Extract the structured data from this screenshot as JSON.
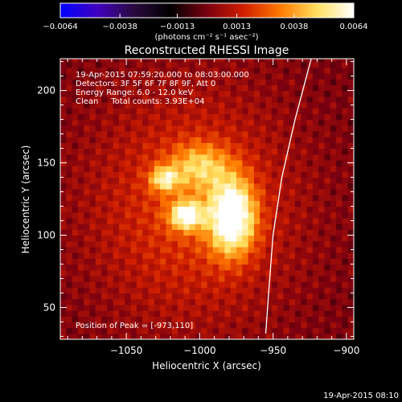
{
  "chart_data": {
    "type": "heatmap",
    "title": "Reconstructed RHESSI Image",
    "xlabel": "Heliocentric X (arcsec)",
    "ylabel": "Heliocentric Y (arcsec)",
    "xlim": [
      -1095,
      -895
    ],
    "ylim": [
      28,
      222
    ],
    "x_ticks": [
      -1050,
      -1000,
      -950,
      -900
    ],
    "x_tick_labels": [
      "−1050",
      "−1000",
      "−950",
      "−900"
    ],
    "y_ticks": [
      50,
      100,
      150,
      200
    ],
    "y_tick_labels": [
      "50",
      "100",
      "150",
      "200"
    ],
    "colorbar": {
      "range": [
        -0.0064,
        0.0064
      ],
      "ticks": [
        -0.0064,
        -0.0038,
        -0.0013,
        0.0013,
        0.0038,
        0.0064
      ],
      "tick_labels": [
        "−0.0064",
        "−0.0038",
        "−0.0013",
        "0.0013",
        "0.0038",
        "0.0064"
      ],
      "unit_label": "(photons cm⁻² s⁻¹ asec⁻²)",
      "colors": [
        "#0000ff",
        "#4000c0",
        "#2a0a3e",
        "#000000",
        "#7a0010",
        "#d01e00",
        "#ff7a00",
        "#ffe060",
        "#ffffff"
      ]
    },
    "annotations": [
      "19-Apr-2015 07:59:20.000 to 08:03:00.000",
      "Detectors: 3F 5F 6F 7F 8F 9F, Att 0",
      "Energy Range: 6.0 - 12.0 keV",
      "Clean     Total counts: 3.93E+04"
    ],
    "peak_label": "Position of Peak = [-973,110]",
    "peak": [
      -973,
      110
    ],
    "sources": [
      {
        "x": -978,
        "y": 113,
        "sx": 11,
        "sy": 18,
        "peak": 0.0064
      },
      {
        "x": -1009,
        "y": 114,
        "sx": 8,
        "sy": 7,
        "peak": 0.005
      },
      {
        "x": -1024,
        "y": 139,
        "sx": 7,
        "sy": 6,
        "peak": 0.0038
      },
      {
        "x": -1000,
        "y": 148,
        "sx": 14,
        "sy": 11,
        "peak": 0.003
      },
      {
        "x": -1005,
        "y": 120,
        "sx": 48,
        "sy": 55,
        "peak": 0.0022
      }
    ],
    "limb": [
      [
        -924,
        222
      ],
      [
        -935,
        180
      ],
      [
        -944,
        140
      ],
      [
        -950,
        100
      ],
      [
        -953,
        60
      ],
      [
        -955,
        32
      ]
    ]
  },
  "footer": {
    "timestamp": "19-Apr-2015 08:10"
  }
}
